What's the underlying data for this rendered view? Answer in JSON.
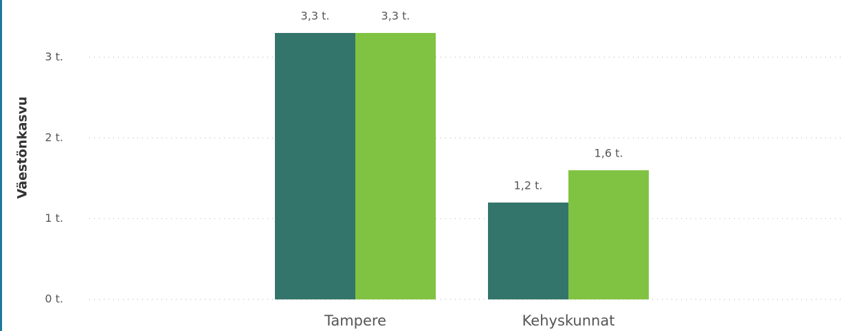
{
  "chart_data": {
    "type": "bar",
    "y_label": "Väestönkasvu",
    "categories": [
      "Tampere",
      "Kehyskunnat"
    ],
    "series": [
      {
        "color": "#34756b",
        "values": [
          3.3,
          1.2
        ],
        "value_labels": [
          "3,3 t.",
          "1,2 t."
        ]
      },
      {
        "color": "#80c342",
        "values": [
          3.3,
          1.6
        ],
        "value_labels": [
          "3,3 t.",
          "1,6 t."
        ]
      }
    ],
    "ylim": [
      0,
      3.3
    ],
    "yticks": [
      {
        "value": 0,
        "label": "0 t."
      },
      {
        "value": 1,
        "label": "1 t."
      },
      {
        "value": 2,
        "label": "2 t."
      },
      {
        "value": 3,
        "label": "3 t."
      }
    ],
    "grid": true
  }
}
